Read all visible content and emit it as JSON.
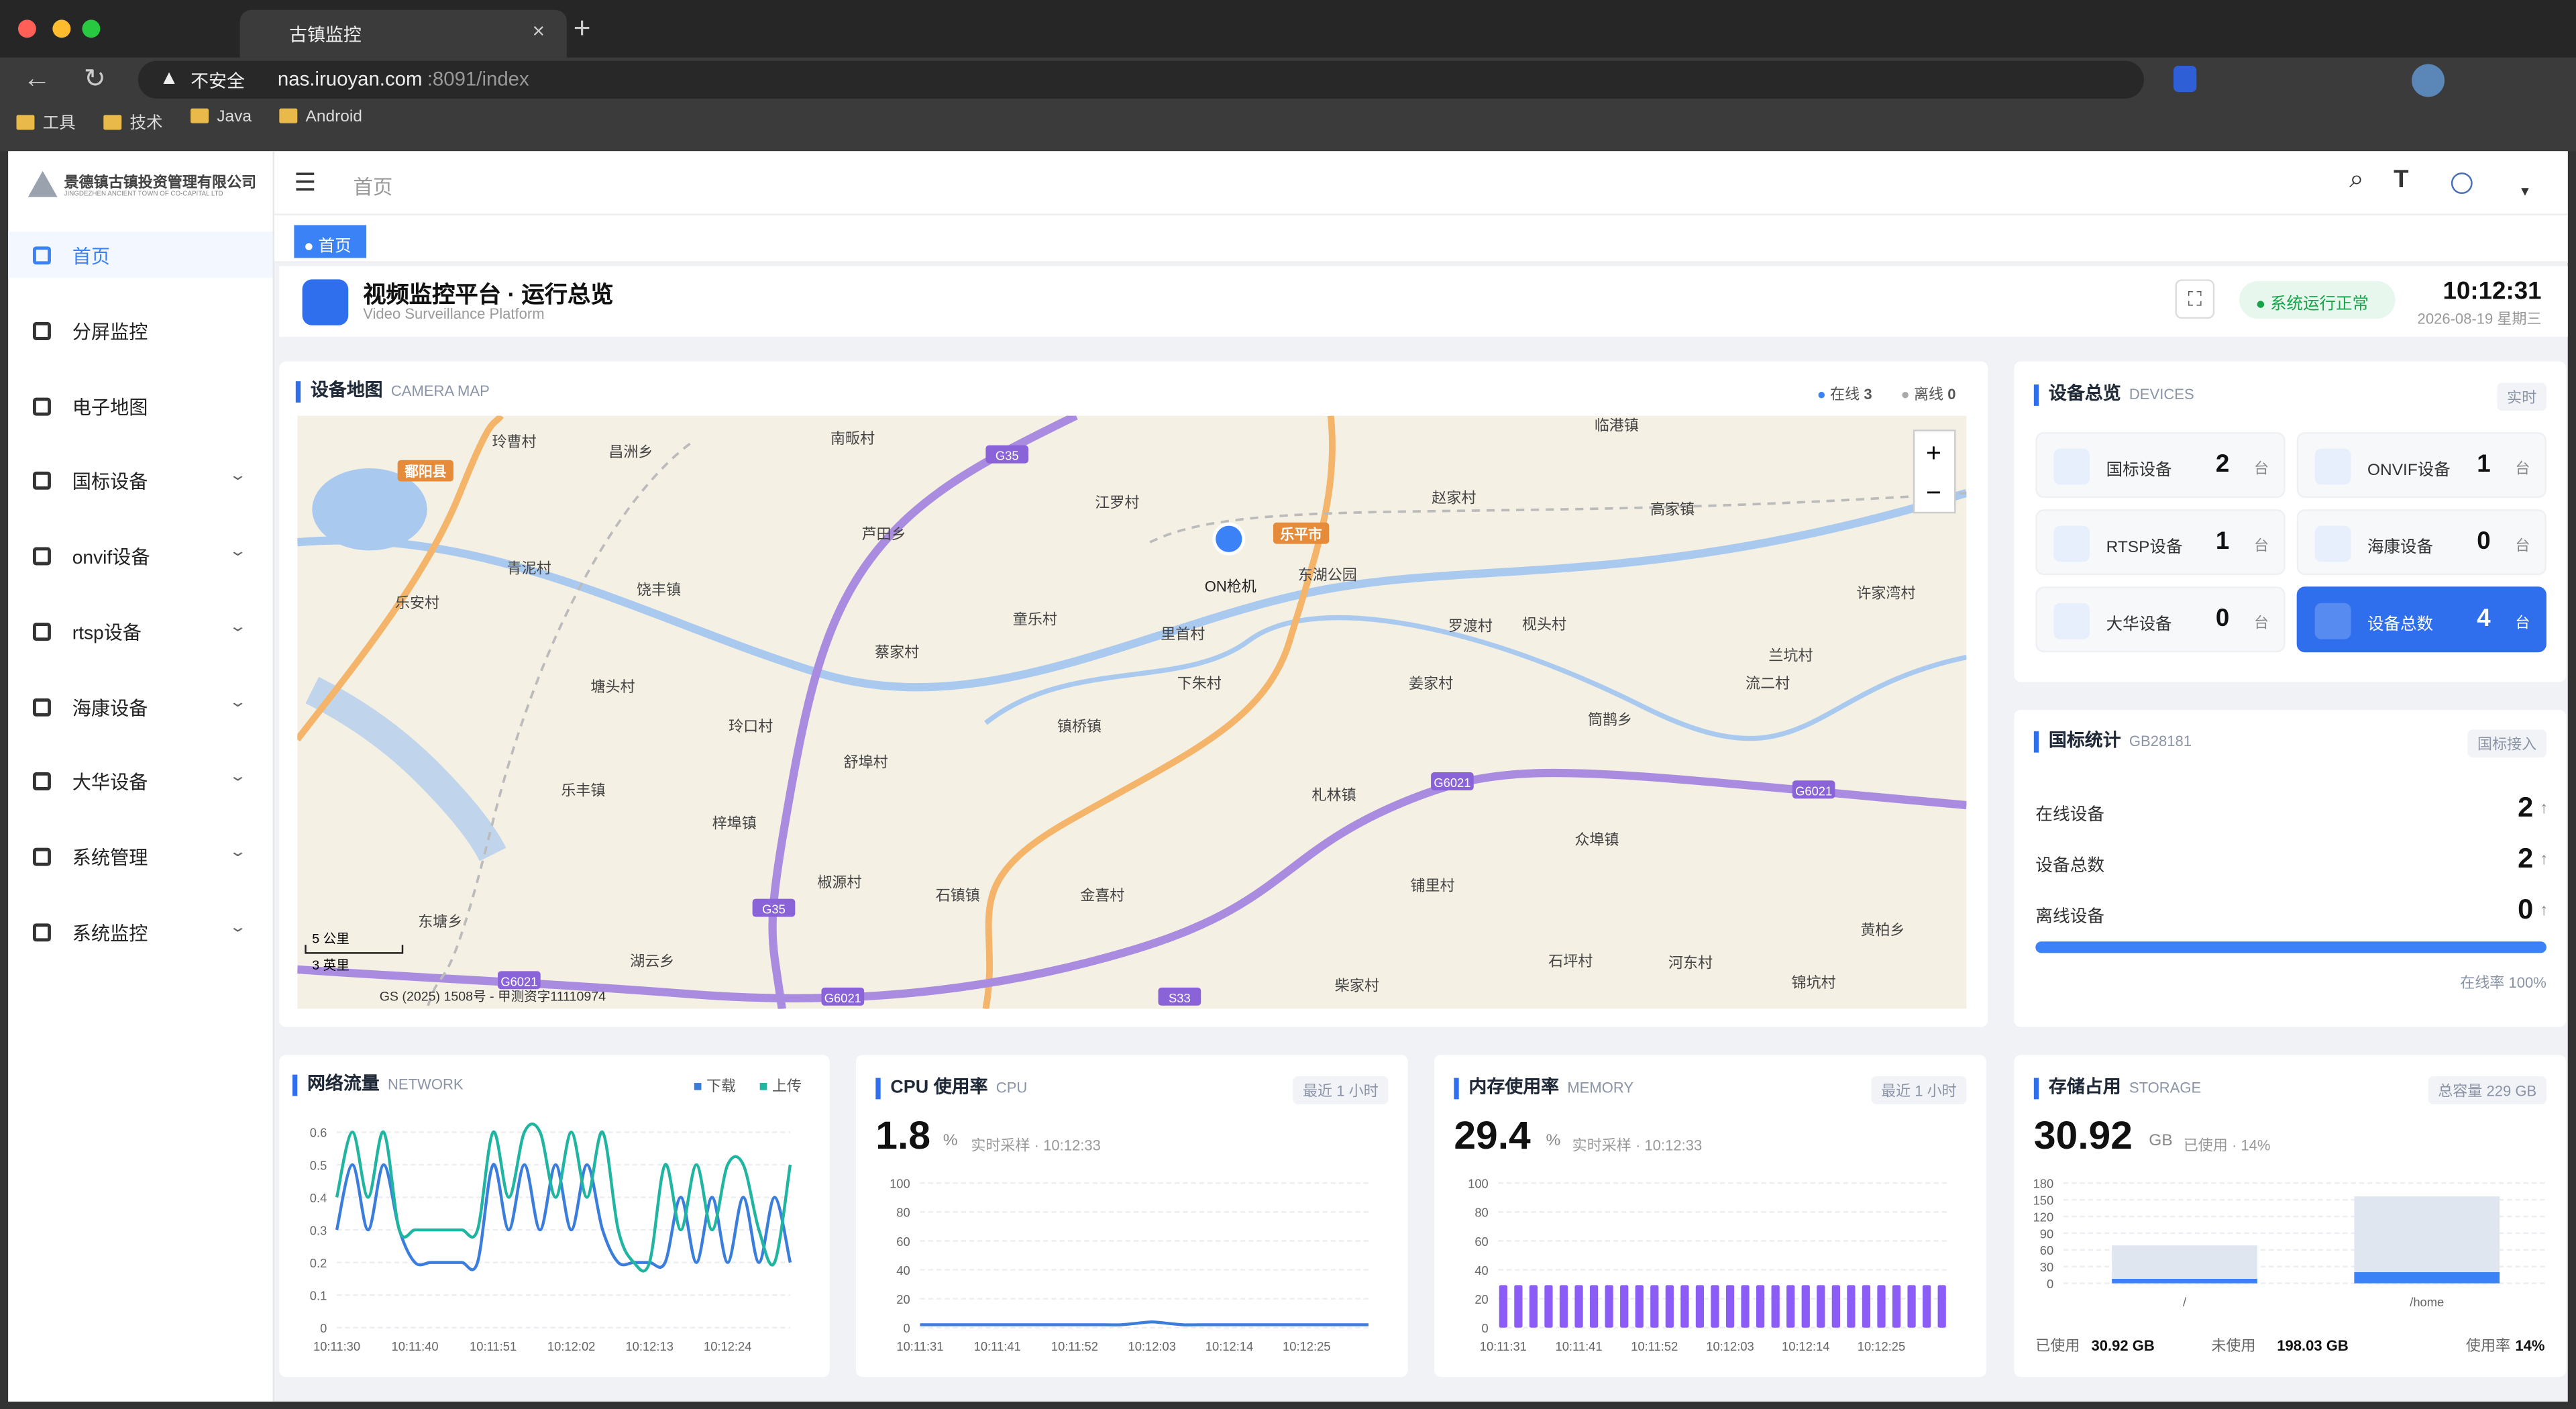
{
  "browser": {
    "tab_title": "古镇监控",
    "insecure": "不安全",
    "url_host": "nas.iruoyan.com",
    "url_rest": ":8091/index",
    "bookmarks": [
      "工具",
      "技术",
      "Java",
      "Android"
    ]
  },
  "sidebar": {
    "logo_text": "景德镇古镇投资管理有限公司",
    "logo_sub": "JINGDEZHEN ANCIENT TOWN OF CO-CAPITAL LTD",
    "active": 0,
    "menu": [
      "首页",
      "分屏监控",
      "电子地图",
      "国标设备",
      "onvif设备",
      "rtsp设备",
      "海康设备",
      "大华设备",
      "系统管理",
      "系统监控"
    ]
  },
  "header": {
    "breadcrumb": "首页",
    "tag": "首页"
  },
  "overview": {
    "title": "视频监控平台 · 运行总览",
    "subtitle": "Video Surveillance Platform",
    "status": "系统运行正常",
    "time": "10:12:31",
    "date": "2026-08-19 星期三"
  },
  "map": {
    "title": "设备地图",
    "sub": "CAMERA MAP",
    "online_label": "在线",
    "online": 3,
    "offline_label": "离线",
    "offline": 0,
    "camera": "ON枪机",
    "scale_km": "5 公里",
    "scale_mi": "3 英里",
    "copyright": "GS (2025) 1508号 - 甲测资字11110974",
    "places": [
      "玲曹村",
      "昌洲乡",
      "南畈村",
      "临港镇",
      "赵家村",
      "江罗村",
      "芦田乡",
      "高家镇",
      "青泥村",
      "饶丰镇",
      "东湖公园",
      "许家湾村",
      "乐安村",
      "童乐村",
      "里首村",
      "罗渡村",
      "枧头村",
      "蔡家村",
      "兰坑村",
      "下朱村",
      "姜家村",
      "流二村",
      "塘头村",
      "玲口村",
      "镇桥镇",
      "筒鹊乡",
      "舒埠村",
      "乐丰镇",
      "札林镇",
      "梓埠镇",
      "众埠镇",
      "椒源村",
      "石镇镇",
      "金喜村",
      "铺里村",
      "东塘乡",
      "黄柏乡",
      "湖云乡",
      "石坪村",
      "河东村",
      "柴家村",
      "锦坑村"
    ],
    "cities": [
      "鄱阳县",
      "乐平市"
    ],
    "roads": [
      "G35",
      "G35",
      "G6021",
      "G6021",
      "G6021",
      "G6021",
      "S33"
    ]
  },
  "devices": {
    "title": "设备总览",
    "sub": "DEVICES",
    "badge": "实时",
    "items": [
      {
        "label": "国标设备",
        "count": 2,
        "unit": "台"
      },
      {
        "label": "ONVIF设备",
        "count": 1,
        "unit": "台"
      },
      {
        "label": "RTSP设备",
        "count": 1,
        "unit": "台"
      },
      {
        "label": "海康设备",
        "count": 0,
        "unit": "台"
      },
      {
        "label": "大华设备",
        "count": 0,
        "unit": "台"
      },
      {
        "label": "设备总数",
        "count": 4,
        "unit": "台",
        "active": true
      }
    ]
  },
  "gb": {
    "title": "国标统计",
    "sub": "GB28181",
    "badge": "国标接入",
    "rows": [
      {
        "label": "在线设备",
        "value": 2
      },
      {
        "label": "设备总数",
        "value": 2
      },
      {
        "label": "离线设备",
        "value": 0
      }
    ],
    "rate_text": "在线率",
    "rate": 100,
    "rate_label": "100%"
  },
  "network": {
    "type": "line",
    "title": "网络流量",
    "sub": "NETWORK",
    "ylim": [
      0,
      0.6
    ],
    "yticks": [
      0,
      0.1,
      0.2,
      0.3,
      0.4,
      0.5,
      0.6
    ],
    "x": [
      "10:11:30",
      null,
      null,
      null,
      null,
      "10:11:40",
      null,
      null,
      null,
      null,
      "10:11:51",
      null,
      null,
      null,
      null,
      "10:12:02",
      null,
      null,
      null,
      null,
      "10:12:13",
      null,
      null,
      null,
      null,
      "10:12:24",
      null,
      null,
      null,
      null
    ],
    "series": [
      {
        "name": "下载",
        "color": "#3b7ddd",
        "values": [
          0.3,
          0.5,
          0.3,
          0.5,
          0.3,
          0.2,
          0.2,
          0.2,
          0.2,
          0.2,
          0.5,
          0.3,
          0.5,
          0.3,
          0.5,
          0.3,
          0.5,
          0.3,
          0.2,
          0.2,
          0.2,
          0.2,
          0.4,
          0.2,
          0.4,
          0.2,
          0.4,
          0.2,
          0.4,
          0.2
        ]
      },
      {
        "name": "上传",
        "color": "#1fb5a0",
        "values": [
          0.4,
          0.6,
          0.4,
          0.6,
          0.3,
          0.3,
          0.3,
          0.3,
          0.3,
          0.3,
          0.6,
          0.4,
          0.6,
          0.6,
          0.4,
          0.6,
          0.4,
          0.6,
          0.3,
          0.2,
          0.2,
          0.5,
          0.3,
          0.5,
          0.3,
          0.5,
          0.5,
          0.3,
          0.2,
          0.5
        ]
      }
    ]
  },
  "cpu": {
    "type": "line",
    "title": "CPU 使用率",
    "sub": "CPU",
    "badge": "最近 1 小时",
    "value": 1.8,
    "unit": "%",
    "sample": "实时采样 · 10:12:33",
    "ylim": [
      0,
      100
    ],
    "yticks": [
      0,
      20,
      40,
      60,
      80,
      100
    ],
    "x": [
      "10:11:31",
      null,
      null,
      null,
      null,
      "10:11:41",
      null,
      null,
      null,
      null,
      "10:11:52",
      null,
      null,
      null,
      null,
      "10:12:03",
      null,
      null,
      null,
      null,
      "10:12:14",
      null,
      null,
      null,
      null,
      "10:12:25",
      null,
      null,
      null,
      null
    ],
    "series": [
      {
        "color": "#3b7ddd",
        "values": [
          2,
          2,
          2,
          2,
          2,
          2,
          2,
          2,
          2,
          2,
          2,
          2,
          2,
          2,
          3,
          4,
          3,
          2,
          2,
          2,
          2,
          2,
          2,
          2,
          2,
          2,
          2,
          2,
          2,
          2
        ]
      }
    ]
  },
  "memory": {
    "type": "bar",
    "title": "内存使用率",
    "sub": "MEMORY",
    "badge": "最近 1 小时",
    "value": 29.4,
    "unit": "%",
    "sample": "实时采样 · 10:12:33",
    "ylim": [
      0,
      100
    ],
    "yticks": [
      0,
      20,
      40,
      60,
      80,
      100
    ],
    "color": "#8b5cf6",
    "x": [
      "10:11:31",
      null,
      null,
      null,
      null,
      "10:11:41",
      null,
      null,
      null,
      null,
      "10:11:52",
      null,
      null,
      null,
      null,
      "10:12:03",
      null,
      null,
      null,
      null,
      "10:12:14",
      null,
      null,
      null,
      null,
      "10:12:25",
      null,
      null,
      null,
      null
    ],
    "values": [
      29.4,
      29.4,
      29.4,
      29.4,
      29.4,
      29.4,
      29.4,
      29.4,
      29.4,
      29.4,
      29.4,
      29.4,
      29.4,
      29.4,
      29.4,
      29.4,
      29.4,
      29.4,
      29.4,
      29.4,
      29.4,
      29.4,
      29.4,
      29.4,
      29.4,
      29.4,
      29.4,
      29.4,
      29.4,
      29.4
    ]
  },
  "storage": {
    "type": "bar",
    "title": "存储占用",
    "sub": "STORAGE",
    "badge": "总容量 229 GB",
    "value": 30.92,
    "unit": "GB",
    "used_pct": "已使用 · 14%",
    "ylim": [
      0,
      180
    ],
    "yticks": [
      0,
      30,
      60,
      90,
      120,
      150,
      180
    ],
    "categories": [
      "/",
      "/home"
    ],
    "series": [
      {
        "color": "#dfe6ef",
        "values": [
          68,
          156
        ]
      },
      {
        "color": "#3b82f6",
        "values": [
          8,
          20
        ]
      }
    ],
    "foot": [
      {
        "label": "已使用",
        "value": "30.92 GB"
      },
      {
        "label": "未使用",
        "value": "198.03 GB"
      },
      {
        "label": "使用率",
        "value": "14%"
      }
    ]
  }
}
